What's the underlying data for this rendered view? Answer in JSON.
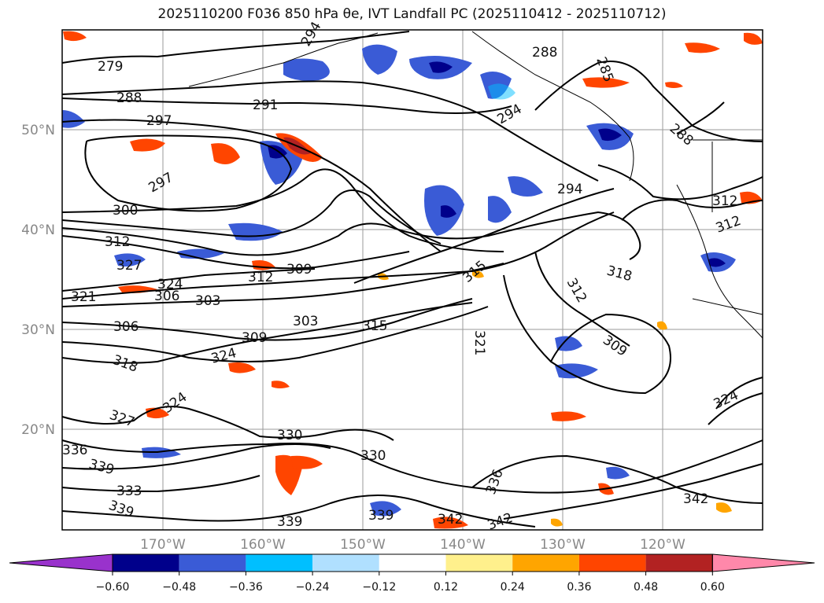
{
  "title": "2025110200 F036 850 hPa θe, IVT Landfall PC (2025110412 - 2025110712)",
  "map": {
    "lat_labels": [
      "50°N",
      "40°N",
      "30°N",
      "20°N"
    ],
    "lon_labels": [
      "170°W",
      "160°W",
      "150°W",
      "140°W",
      "130°W",
      "120°W"
    ],
    "contour_labels": [
      "279",
      "288",
      "291",
      "297",
      "297",
      "300",
      "312",
      "327",
      "324",
      "306",
      "303",
      "309",
      "321",
      "306",
      "303",
      "309",
      "318",
      "324",
      "312",
      "315",
      "294",
      "294",
      "288",
      "285",
      "288",
      "294",
      "312",
      "318",
      "312",
      "321",
      "309",
      "324",
      "327",
      "324",
      "330",
      "330",
      "336",
      "339",
      "333",
      "339",
      "339",
      "339",
      "342",
      "342",
      "342",
      "336",
      "315",
      "312"
    ]
  },
  "colorbar": {
    "colors": [
      "#9932cc",
      "#00008b",
      "#3a5bd6",
      "#00bfff",
      "#b0e0ff",
      "#ffffff",
      "#fff08c",
      "#ffa500",
      "#ff4500",
      "#b22222",
      "#ff88aa"
    ],
    "tick_labels": [
      "−0.60",
      "−0.48",
      "−0.36",
      "−0.24",
      "−0.12",
      "0.12",
      "0.24",
      "0.36",
      "0.48",
      "0.60"
    ]
  }
}
